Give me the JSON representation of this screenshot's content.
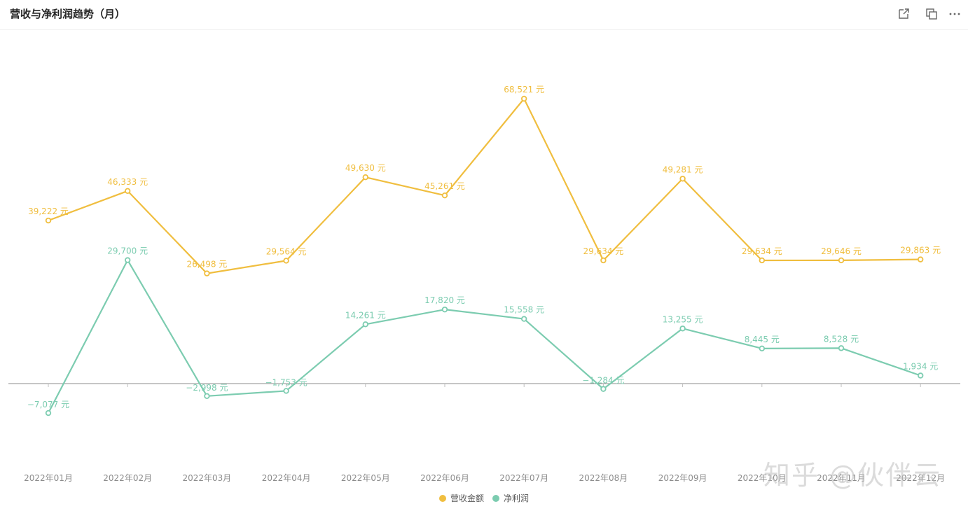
{
  "header": {
    "title": "营收与净利润趋势（月）"
  },
  "toolbar": {
    "icons": [
      "external-link-icon",
      "copy-icon",
      "more-icon"
    ]
  },
  "watermark": "知乎 @伙伴云",
  "colors": {
    "revenue": "#F0BE3F",
    "profit": "#7CCCB0"
  },
  "chart_data": {
    "type": "line",
    "categories": [
      "2022年01月",
      "2022年02月",
      "2022年03月",
      "2022年04月",
      "2022年05月",
      "2022年06月",
      "2022年07月",
      "2022年08月",
      "2022年09月",
      "2022年10月",
      "2022年11月",
      "2022年12月"
    ],
    "unit": "元",
    "series": [
      {
        "name": "营收金额",
        "color": "#F0BE3F",
        "values": [
          39222,
          46333,
          26498,
          29564,
          49630,
          45261,
          68521,
          29634,
          49281,
          29634,
          29646,
          29863
        ],
        "labels": [
          "39,222 元",
          "46,333 元",
          "26,498 元",
          "29,564 元",
          "49,630 元",
          "45,261 元",
          "68,521 元",
          "29,634 元",
          "49,281 元",
          "29,634 元",
          "29,646 元",
          "29,863 元"
        ]
      },
      {
        "name": "净利润",
        "color": "#7CCCB0",
        "values": [
          -7077,
          29700,
          -2998,
          -1753,
          14261,
          17820,
          15558,
          -1284,
          13255,
          8445,
          8528,
          1934
        ],
        "labels": [
          "−7,077 元",
          "29,700 元",
          "−2,998 元",
          "−1,753 元",
          "14,261 元",
          "17,820 元",
          "15,558 元",
          "−1,284 元",
          "13,255 元",
          "8,445 元",
          "8,528 元",
          "1,934 元"
        ]
      }
    ],
    "grid": false,
    "legend_position": "bottom-center"
  }
}
